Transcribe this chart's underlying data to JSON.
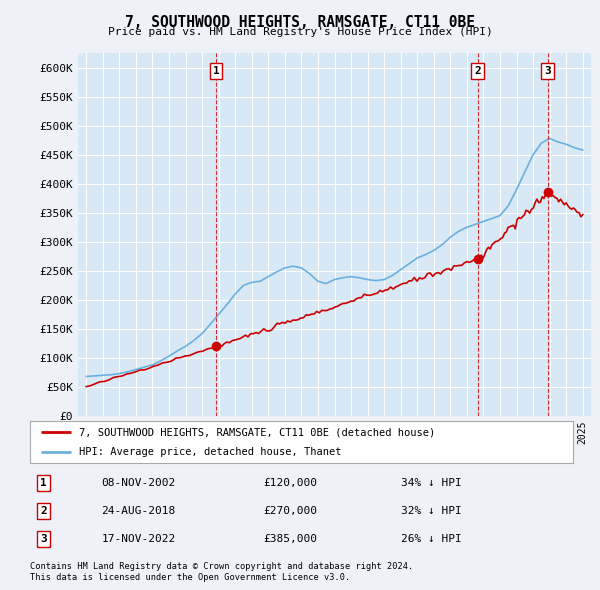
{
  "title": "7, SOUTHWOOD HEIGHTS, RAMSGATE, CT11 0BE",
  "subtitle": "Price paid vs. HM Land Registry's House Price Index (HPI)",
  "ylabel_ticks": [
    "£0",
    "£50K",
    "£100K",
    "£150K",
    "£200K",
    "£250K",
    "£300K",
    "£350K",
    "£400K",
    "£450K",
    "£500K",
    "£550K",
    "£600K"
  ],
  "ytick_values": [
    0,
    50000,
    100000,
    150000,
    200000,
    250000,
    300000,
    350000,
    400000,
    450000,
    500000,
    550000,
    600000
  ],
  "ymax": 625000,
  "background_color": "#eef2f8",
  "plot_bg_color": "#d8e8f4",
  "red_color": "#cc0000",
  "blue_color": "#6ab0e0",
  "trans_dates_num": [
    2002.86,
    2018.65,
    2022.88
  ],
  "trans_prices": [
    120000,
    270000,
    385000
  ],
  "trans_labels": [
    "1",
    "2",
    "3"
  ],
  "transaction_dates": [
    "08-NOV-2002",
    "24-AUG-2018",
    "17-NOV-2022"
  ],
  "transaction_prices": [
    "£120,000",
    "£270,000",
    "£385,000"
  ],
  "transaction_hpi": [
    "34% ↓ HPI",
    "32% ↓ HPI",
    "26% ↓ HPI"
  ],
  "legend_red_label": "7, SOUTHWOOD HEIGHTS, RAMSGATE, CT11 0BE (detached house)",
  "legend_blue_label": "HPI: Average price, detached house, Thanet",
  "footer1": "Contains HM Land Registry data © Crown copyright and database right 2024.",
  "footer2": "This data is licensed under the Open Government Licence v3.0."
}
